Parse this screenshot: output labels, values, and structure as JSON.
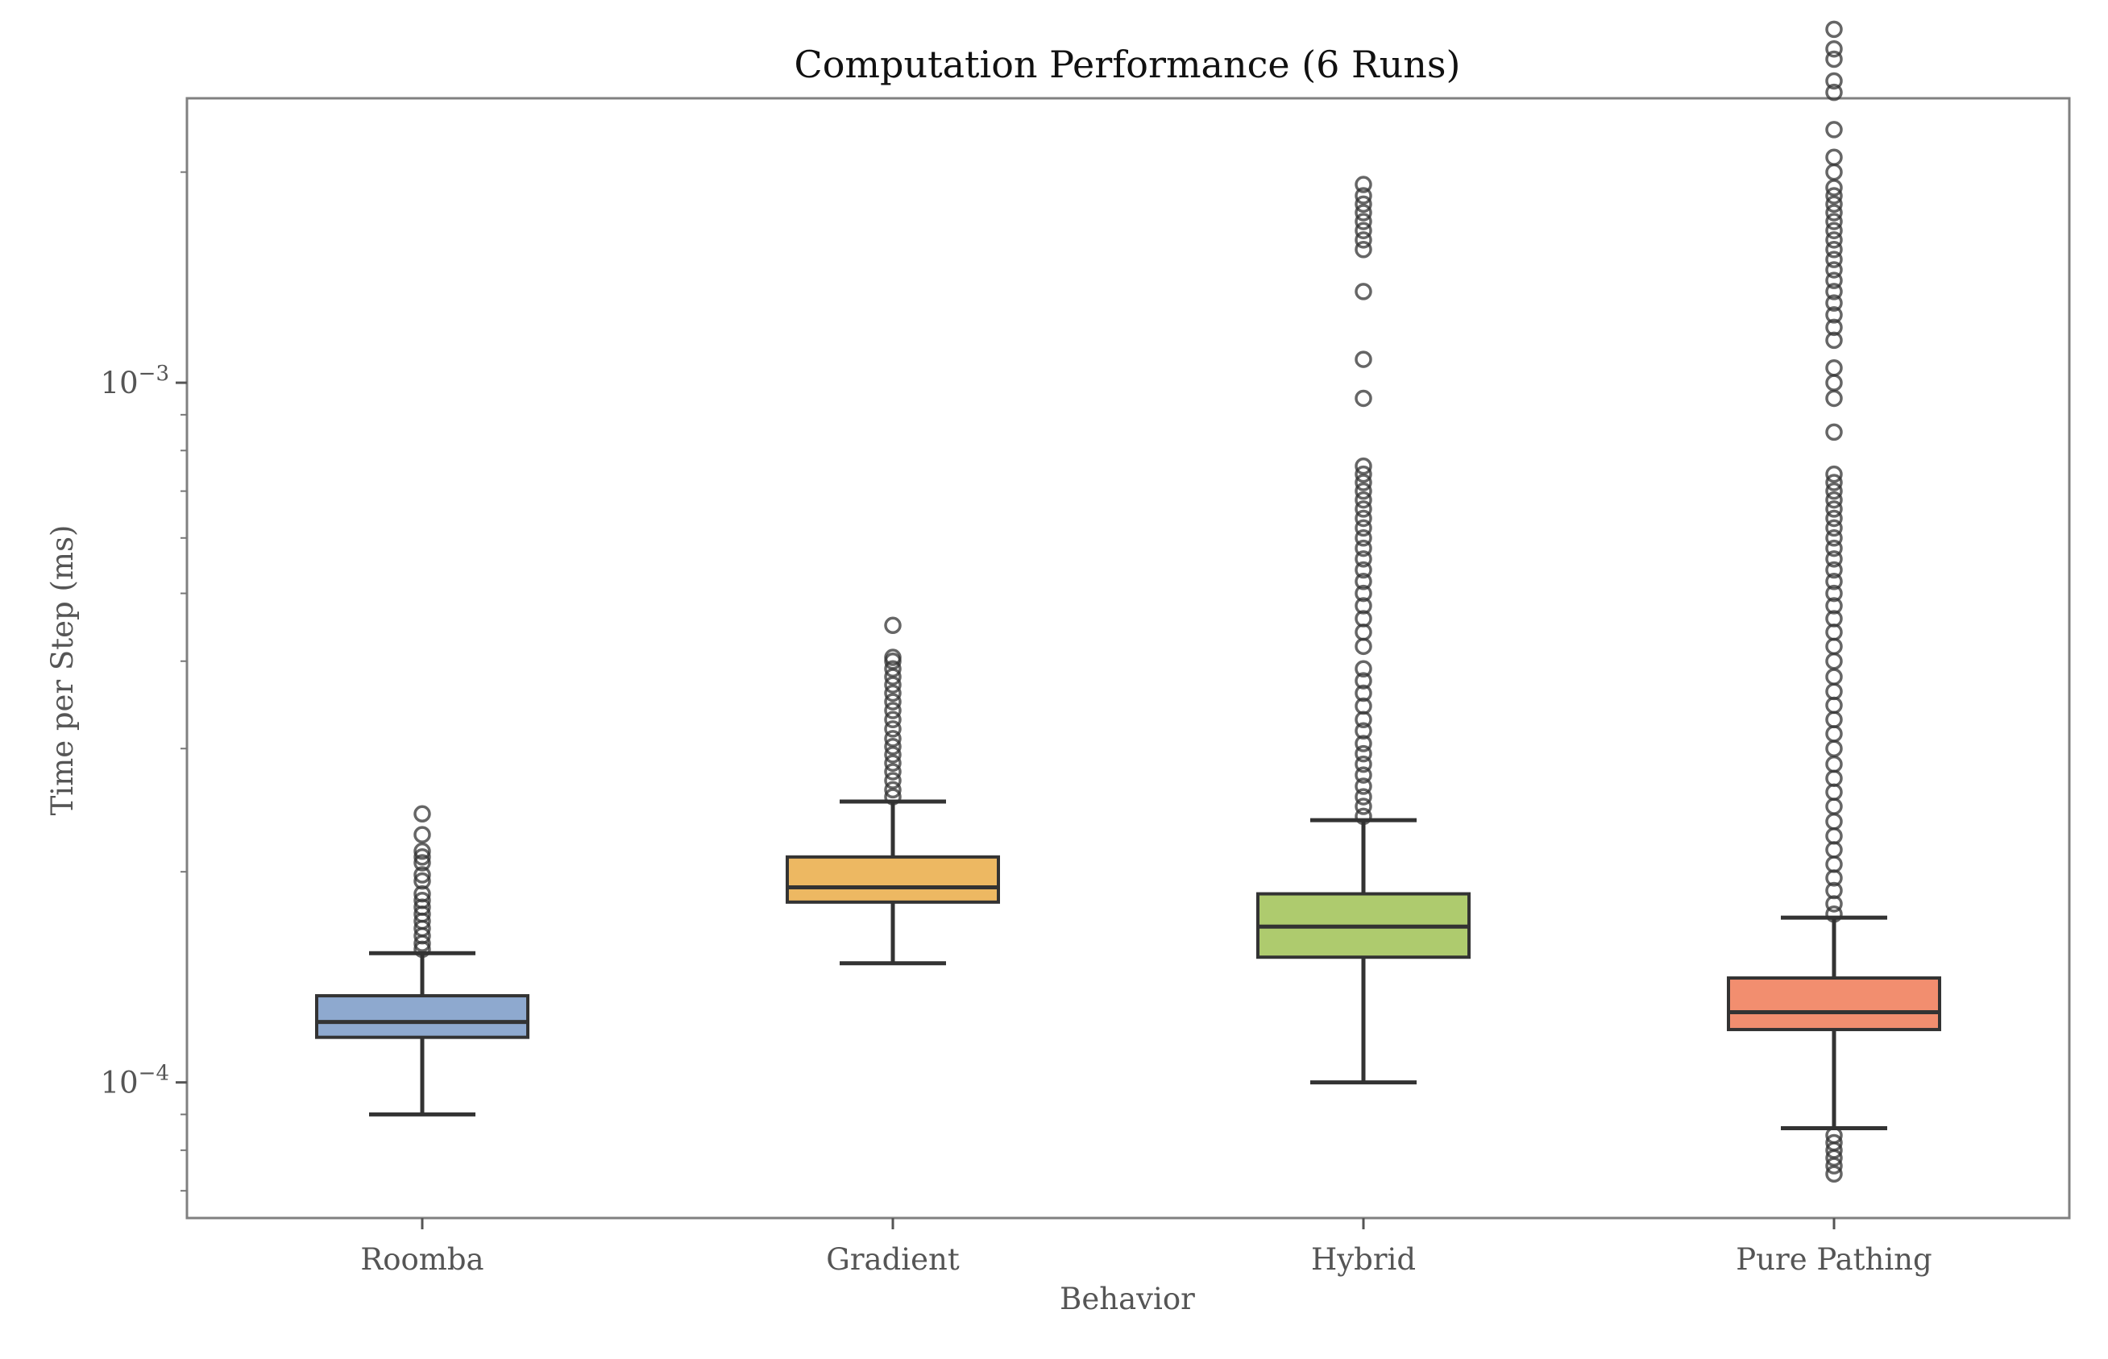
{
  "chart_data": {
    "type": "box",
    "title": "Computation Performance (6 Runs)",
    "xlabel": "Behavior",
    "ylabel": "Time per Step (ms)",
    "yscale": "log",
    "ylim": [
      6.4e-05,
      0.00255
    ],
    "y_tick_labels": [
      "10−4",
      "10−3"
    ],
    "y_tick_values": [
      0.0001,
      0.001
    ],
    "categories": [
      "Roomba",
      "Gradient",
      "Hybrid",
      "Pure Pathing"
    ],
    "grid": false,
    "series": [
      {
        "category": "Roomba",
        "color": "#8EA9CF",
        "whisker_low": 9e-05,
        "q1": 0.000116,
        "median": 0.000122,
        "q3": 0.000133,
        "whisker_high": 0.000153,
        "outliers": [
          0.000155,
          0.000158,
          0.000162,
          0.000166,
          0.00017,
          0.000174,
          0.000178,
          0.000182,
          0.000186,
          0.000194,
          0.000198,
          0.000206,
          0.00021,
          0.000214,
          0.000226,
          0.000242
        ]
      },
      {
        "category": "Gradient",
        "color": "#EDB862",
        "whisker_low": 0.000148,
        "q1": 0.000181,
        "median": 0.00019,
        "q3": 0.00021,
        "whisker_high": 0.000252,
        "outliers": [
          0.000256,
          0.000262,
          0.00027,
          0.000278,
          0.000286,
          0.000294,
          0.000302,
          0.00031,
          0.00032,
          0.00033,
          0.00034,
          0.00035,
          0.00036,
          0.00037,
          0.00038,
          0.00039,
          0.0004,
          0.000405,
          0.00045
        ]
      },
      {
        "category": "Hybrid",
        "color": "#AECB6E",
        "whisker_low": 0.0001,
        "q1": 0.000151,
        "median": 0.000167,
        "q3": 0.000186,
        "whisker_high": 0.000237,
        "outliers": [
          0.00024,
          0.000248,
          0.000256,
          0.000265,
          0.000275,
          0.000285,
          0.000295,
          0.000305,
          0.000318,
          0.00033,
          0.000345,
          0.00036,
          0.000375,
          0.00039,
          0.00042,
          0.00044,
          0.00046,
          0.00048,
          0.0005,
          0.00052,
          0.00054,
          0.00056,
          0.00058,
          0.0006,
          0.00062,
          0.00064,
          0.00066,
          0.00068,
          0.0007,
          0.00072,
          0.00074,
          0.00076,
          0.00095,
          0.00108,
          0.00135,
          0.00155,
          0.0016,
          0.00165,
          0.0017,
          0.00175,
          0.0018,
          0.00185,
          0.00192
        ]
      },
      {
        "category": "Pure Pathing",
        "color": "#F28E6F",
        "whisker_low": 8.6e-05,
        "q1": 0.000119,
        "median": 0.000126,
        "q3": 0.000141,
        "whisker_high": 0.000172,
        "outliers": [
          7.4e-05,
          7.6e-05,
          7.8e-05,
          8e-05,
          8.2e-05,
          8.4e-05,
          0.000174,
          0.00018,
          0.000188,
          0.000196,
          0.000205,
          0.000215,
          0.000225,
          0.000236,
          0.000248,
          0.00026,
          0.000272,
          0.000285,
          0.0003,
          0.000315,
          0.00033,
          0.000346,
          0.000362,
          0.00038,
          0.0004,
          0.00042,
          0.00044,
          0.00046,
          0.00048,
          0.0005,
          0.00052,
          0.00054,
          0.00056,
          0.00058,
          0.0006,
          0.00062,
          0.00064,
          0.00066,
          0.00068,
          0.0007,
          0.00072,
          0.00074,
          0.00085,
          0.00095,
          0.001,
          0.00105,
          0.00115,
          0.0012,
          0.00125,
          0.0013,
          0.00135,
          0.0014,
          0.00145,
          0.0015,
          0.00155,
          0.0016,
          0.00165,
          0.0017,
          0.00175,
          0.0018,
          0.00185,
          0.0019,
          0.002,
          0.0021,
          0.0023,
          0.0026,
          0.0027,
          0.0029,
          0.003,
          0.0032
        ]
      }
    ]
  }
}
